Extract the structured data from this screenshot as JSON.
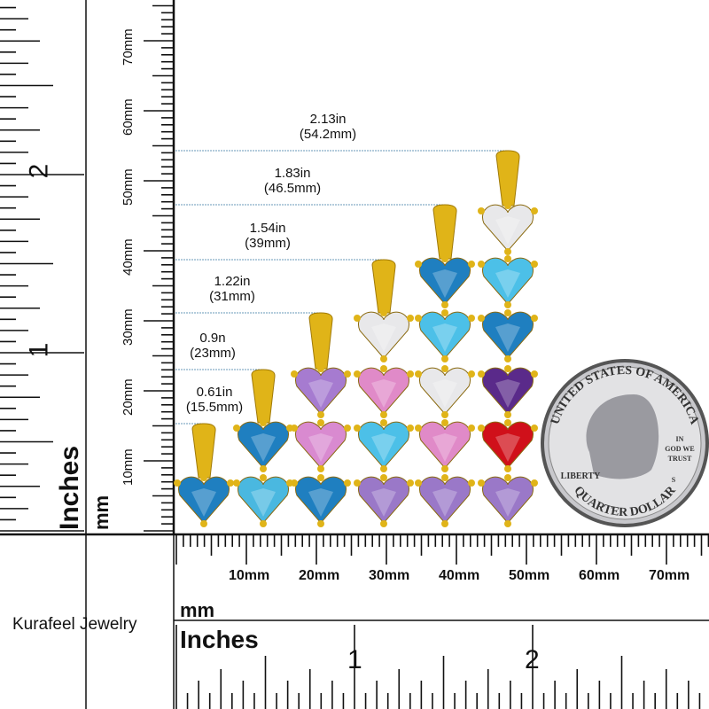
{
  "brand": "Kurafeel Jewelry",
  "vertical_ruler": {
    "unit_mm": "mm",
    "unit_in": "Inches",
    "mm_labels": [
      "10mm",
      "20mm",
      "30mm",
      "40mm",
      "50mm",
      "60mm",
      "70mm"
    ],
    "in_labels": [
      "1",
      "2"
    ]
  },
  "horizontal_ruler": {
    "unit_mm": "mm",
    "unit_in": "Inches",
    "mm_labels": [
      "10mm",
      "20mm",
      "30mm",
      "40mm",
      "50mm",
      "60mm",
      "70mm"
    ],
    "in_labels": [
      "1",
      "2"
    ]
  },
  "measurements": [
    {
      "inches": "0.61in",
      "mm": "(15.5mm)"
    },
    {
      "inches": "0.9n",
      "mm": "(23mm)"
    },
    {
      "inches": "1.22in",
      "mm": "(31mm)"
    },
    {
      "inches": "1.54in",
      "mm": "(39mm)"
    },
    {
      "inches": "1.83in",
      "mm": "(46.5mm)"
    },
    {
      "inches": "2.13in",
      "mm": "(54.2mm)"
    }
  ],
  "pendants": [
    {
      "stones": [
        "#1f7fc0"
      ]
    },
    {
      "stones": [
        "#4ab8e0",
        "#1f7fc0"
      ]
    },
    {
      "stones": [
        "#1f7fc0",
        "#d98ad0",
        "#a67bd0"
      ]
    },
    {
      "stones": [
        "#9a78c8",
        "#4cc0e8",
        "#e08ac8",
        "#e8e8ea"
      ]
    },
    {
      "stones": [
        "#9a78c8",
        "#e08ac8",
        "#e8e8ea",
        "#4cc0e8",
        "#1f7fc0"
      ]
    },
    {
      "stones": [
        "#9a78c8",
        "#d0101a",
        "#5a2a8a",
        "#1f7fc0",
        "#4cc0e8",
        "#e8e8ea"
      ]
    }
  ],
  "colors": {
    "gold": "#e0b418",
    "guide_line": "#6a9ab8",
    "coin": "#c8c8cc"
  },
  "coin": {
    "top": "UNITED STATES OF AMERICA",
    "left": "LIBERTY",
    "motto": [
      "IN",
      "GOD WE",
      "TRUST"
    ],
    "mint": "S",
    "bottom": "QUARTER DOLLAR"
  }
}
